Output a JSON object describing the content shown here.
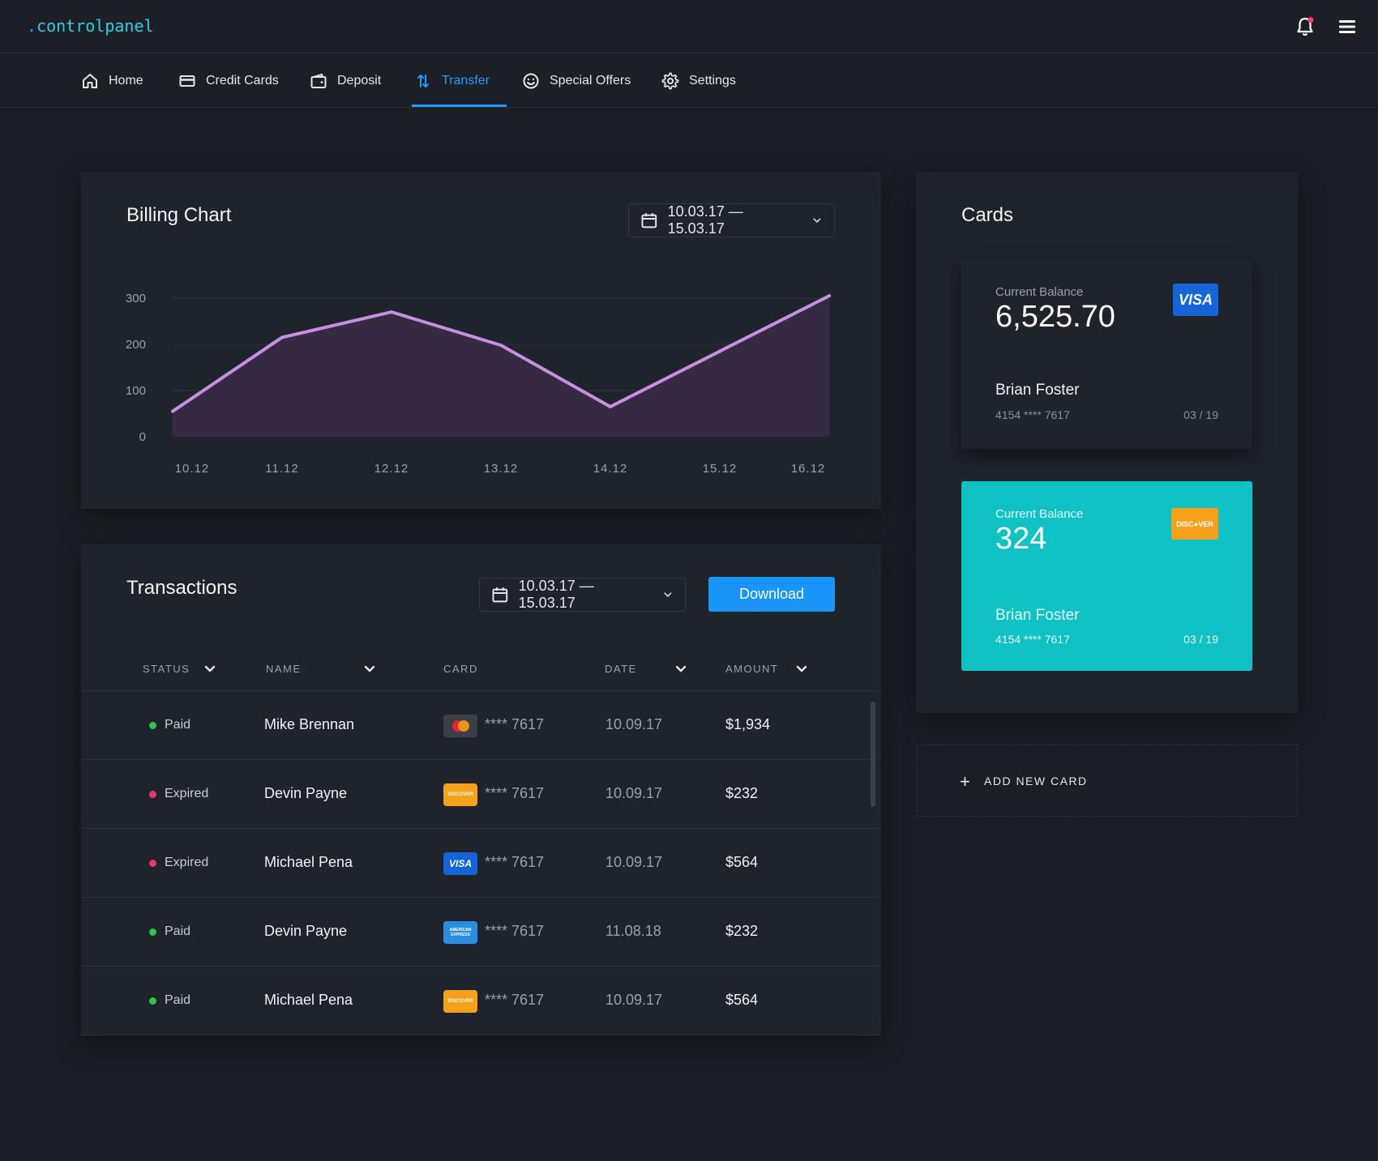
{
  "app": {
    "logo_dot": ".",
    "logo_text": "controlpanel"
  },
  "nav": {
    "items": [
      {
        "label": "Home",
        "icon": "home-icon"
      },
      {
        "label": "Credit Cards",
        "icon": "credit-card-icon"
      },
      {
        "label": "Deposit",
        "icon": "wallet-icon"
      },
      {
        "label": "Transfer",
        "icon": "transfer-icon",
        "active": true
      },
      {
        "label": "Special Offers",
        "icon": "smiley-icon"
      },
      {
        "label": "Settings",
        "icon": "gear-icon"
      }
    ]
  },
  "billing": {
    "title": "Billing Chart",
    "date_range": "10.03.17 — 15.03.17"
  },
  "chart_data": {
    "type": "area",
    "categories": [
      "10.12",
      "11.12",
      "12.12",
      "13.12",
      "14.12",
      "15.12",
      "16.12"
    ],
    "values": [
      55,
      215,
      270,
      198,
      65,
      185,
      305
    ],
    "yticks": [
      0,
      100,
      200,
      300
    ],
    "ylim": [
      0,
      300
    ],
    "grid": true,
    "line_color": "#c88ee0",
    "fill_color": "#3a2c45"
  },
  "transactions": {
    "title": "Transactions",
    "date_range": "10.03.17 — 15.03.17",
    "download_label": "Download",
    "columns": {
      "status": "STATUS",
      "name": "NAME",
      "card": "CARD",
      "date": "DATE",
      "amount": "AMOUNT"
    },
    "rows": [
      {
        "status": "Paid",
        "status_color": "#35c24a",
        "name": "Mike Brennan",
        "card_type": "mastercard",
        "card_number": "**** 7617",
        "date": "10.09.17",
        "amount": "$1,934"
      },
      {
        "status": "Expired",
        "status_color": "#e6396d",
        "name": "Devin Payne",
        "card_type": "discover",
        "card_number": "**** 7617",
        "date": "10.09.17",
        "amount": "$232"
      },
      {
        "status": "Expired",
        "status_color": "#e6396d",
        "name": "Michael Pena",
        "card_type": "visa",
        "card_number": "**** 7617",
        "date": "10.09.17",
        "amount": "$564"
      },
      {
        "status": "Paid",
        "status_color": "#35c24a",
        "name": "Devin Payne",
        "card_type": "amex",
        "card_number": "**** 7617",
        "date": "11.08.18",
        "amount": "$232"
      },
      {
        "status": "Paid",
        "status_color": "#35c24a",
        "name": "Michael Pena",
        "card_type": "discover",
        "card_number": "**** 7617",
        "date": "10.09.17",
        "amount": "$564"
      }
    ]
  },
  "cards": {
    "title": "Cards",
    "items": [
      {
        "balance_label": "Current Balance",
        "balance": "6,525.70",
        "brand": "VISA",
        "holder": "Brian Foster",
        "number": "4154 **** 7617",
        "expiry": "03 / 19",
        "bg": "#1f232b"
      },
      {
        "balance_label": "Current Balance",
        "balance": "324",
        "brand": "DISC●VER",
        "holder": "Brian Foster",
        "number": "4154 **** 7617",
        "expiry": "03 / 19",
        "bg": "#10c2c4"
      }
    ],
    "add_label": "ADD NEW CARD"
  }
}
